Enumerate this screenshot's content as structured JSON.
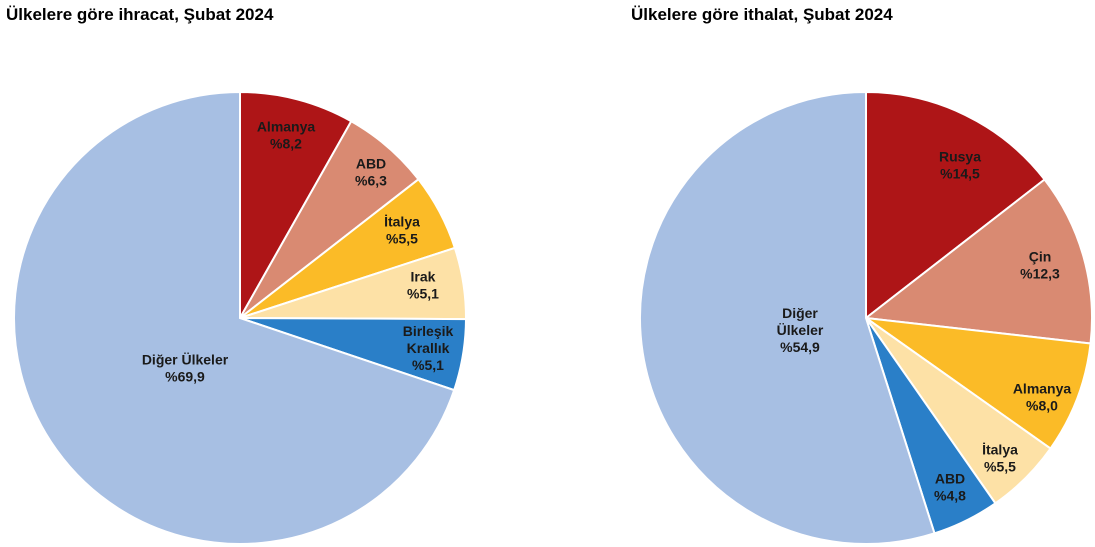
{
  "chart_data": [
    {
      "type": "pie",
      "title": "Ülkelere göre ihracat, Şubat 2024",
      "slices": [
        {
          "label": [
            "Almanya"
          ],
          "value_label": "%8,2",
          "value": 8.2,
          "color": "#AE1517"
        },
        {
          "label": [
            "ABD"
          ],
          "value_label": "%6,3",
          "value": 6.3,
          "color": "#D98A72"
        },
        {
          "label": [
            "İtalya"
          ],
          "value_label": "%5,5",
          "value": 5.5,
          "color": "#FBBB27"
        },
        {
          "label": [
            "Irak"
          ],
          "value_label": "%5,1",
          "value": 5.1,
          "color": "#FDE1A6"
        },
        {
          "label": [
            "Birleşik",
            "Krallık"
          ],
          "value_label": "%5,1",
          "value": 5.1,
          "color": "#2A7FC8"
        },
        {
          "label": [
            "Diğer Ülkeler"
          ],
          "value_label": "%69,9",
          "value": 69.9,
          "color": "#A7BFE3"
        }
      ]
    },
    {
      "type": "pie",
      "title": "Ülkelere göre ithalat, Şubat 2024",
      "slices": [
        {
          "label": [
            "Rusya"
          ],
          "value_label": "%14,5",
          "value": 14.5,
          "color": "#AE1517"
        },
        {
          "label": [
            "Çin"
          ],
          "value_label": "%12,3",
          "value": 12.3,
          "color": "#D98A72"
        },
        {
          "label": [
            "Almanya"
          ],
          "value_label": "%8,0",
          "value": 8.0,
          "color": "#FBBB27"
        },
        {
          "label": [
            "İtalya"
          ],
          "value_label": "%5,5",
          "value": 5.5,
          "color": "#FDE1A6"
        },
        {
          "label": [
            "ABD"
          ],
          "value_label": "%4,8",
          "value": 4.8,
          "color": "#2A7FC8"
        },
        {
          "label": [
            "Diğer",
            "Ülkeler"
          ],
          "value_label": "%54,9",
          "value": 54.9,
          "color": "#A7BFE3"
        }
      ]
    }
  ]
}
